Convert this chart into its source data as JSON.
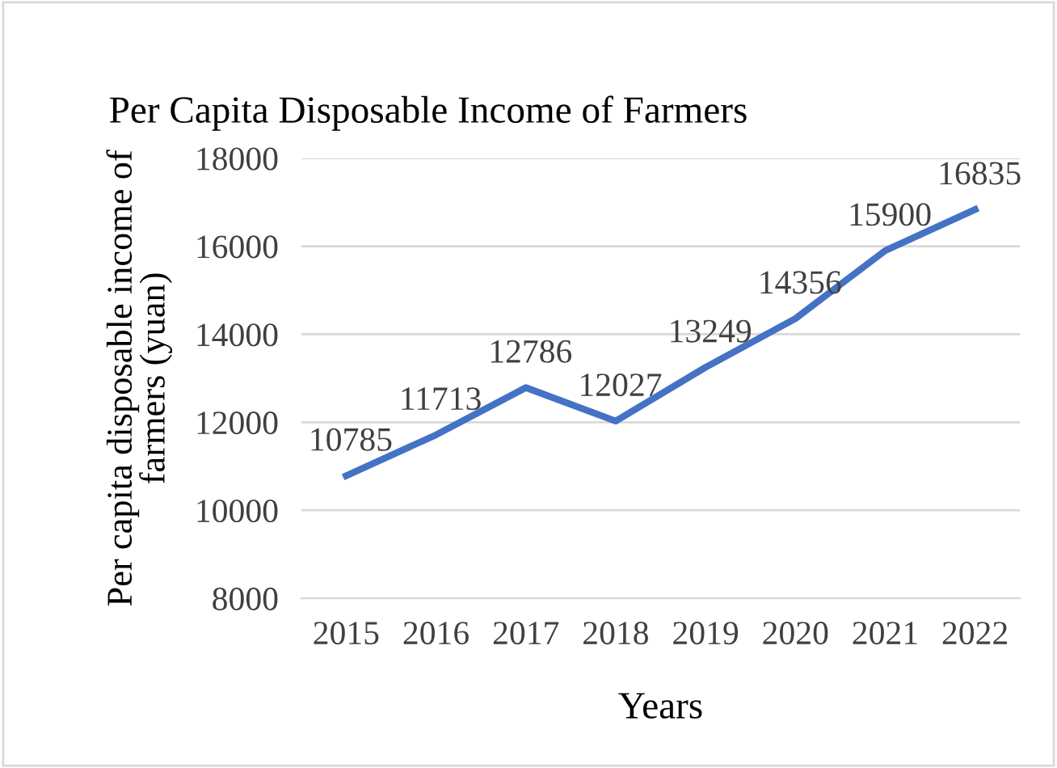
{
  "chart_data": {
    "type": "line",
    "title": "Per Capita Disposable Income of Farmers",
    "xlabel": "Years",
    "ylabel": "Per capita disposable income of farmers (yuan)",
    "categories": [
      "2015",
      "2016",
      "2017",
      "2018",
      "2019",
      "2020",
      "2021",
      "2022"
    ],
    "series": [
      {
        "color": "#4472c4",
        "values": [
          10785,
          11713,
          12786,
          12027,
          13249,
          14356,
          15900,
          16835
        ]
      }
    ],
    "ylim": [
      8000,
      18000
    ],
    "yticks": [
      8000,
      10000,
      12000,
      14000,
      16000,
      18000
    ],
    "grid": "y",
    "data_labels": true,
    "marker": "none",
    "line_style": "solid"
  }
}
